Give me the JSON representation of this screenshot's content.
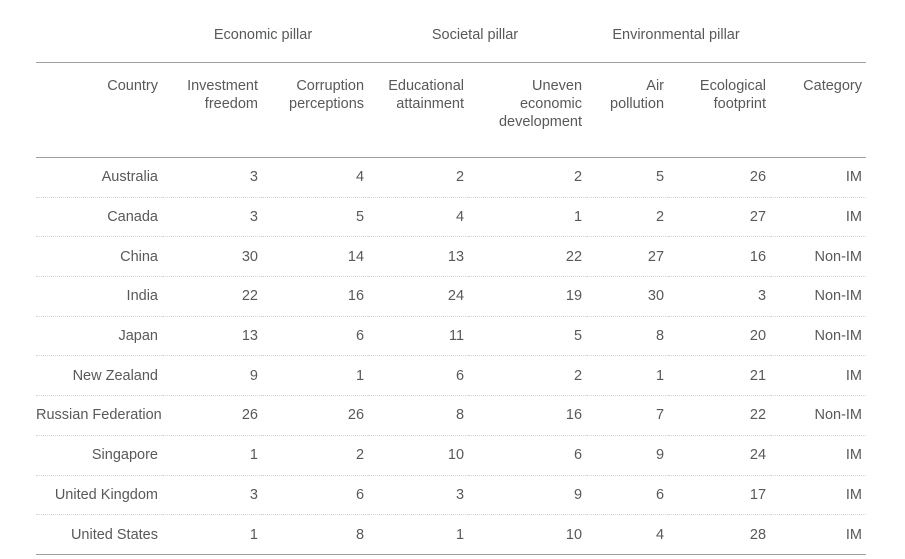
{
  "colors": {
    "text": "#58595a",
    "solid_border": "#9e9e9e",
    "dotted_border": "#d5d5d5",
    "background": "#ffffff"
  },
  "chart_data": {
    "type": "table",
    "column_groups": [
      {
        "label": "",
        "span": 1
      },
      {
        "label": "Economic pillar",
        "span": 2
      },
      {
        "label": "Societal pillar",
        "span": 2
      },
      {
        "label": "Environmental pillar",
        "span": 2
      },
      {
        "label": "",
        "span": 1
      }
    ],
    "columns": [
      "Country",
      "Investment freedom",
      "Corruption perceptions",
      "Educational attainment",
      "Uneven economic development",
      "Air pollution",
      "Ecological footprint",
      "Category"
    ],
    "rows": [
      [
        "Australia",
        3,
        4,
        2,
        2,
        5,
        26,
        "IM"
      ],
      [
        "Canada",
        3,
        5,
        4,
        1,
        2,
        27,
        "IM"
      ],
      [
        "China",
        30,
        14,
        13,
        22,
        27,
        16,
        "Non-IM"
      ],
      [
        "India",
        22,
        16,
        24,
        19,
        30,
        3,
        "Non-IM"
      ],
      [
        "Japan",
        13,
        6,
        11,
        5,
        8,
        20,
        "Non-IM"
      ],
      [
        "New Zealand",
        9,
        1,
        6,
        2,
        1,
        21,
        "IM"
      ],
      [
        "Russian Federation",
        26,
        26,
        8,
        16,
        7,
        22,
        "Non-IM"
      ],
      [
        "Singapore",
        1,
        2,
        10,
        6,
        9,
        24,
        "IM"
      ],
      [
        "United Kingdom",
        3,
        6,
        3,
        9,
        6,
        17,
        "IM"
      ],
      [
        "United States",
        1,
        8,
        1,
        10,
        4,
        28,
        "IM"
      ]
    ]
  }
}
